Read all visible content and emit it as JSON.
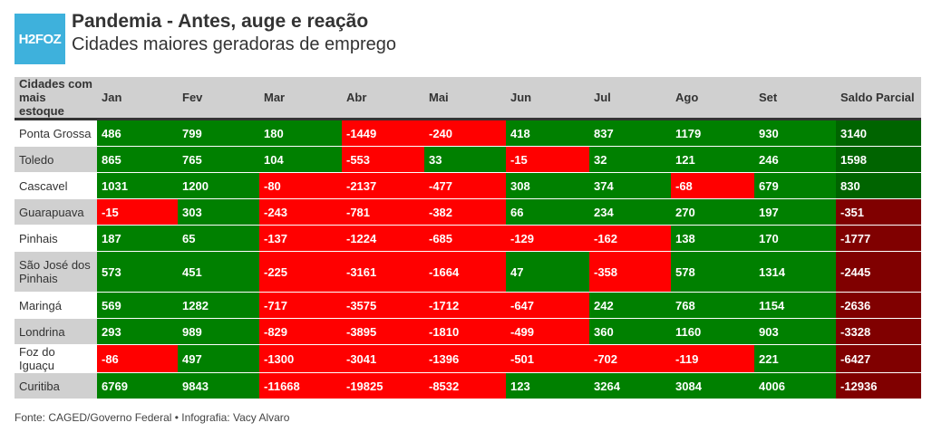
{
  "header": {
    "logo": "H2FOZ",
    "title": "Pandemia - Antes, auge e reação",
    "subtitle": "Cidades maiores geradoras de emprego"
  },
  "colors": {
    "positive": "#008000",
    "negative": "#ff0000",
    "total_positive": "#006400",
    "total_negative": "#800000",
    "header_bg": "#d0d0d0",
    "logo_bg": "#3eb1dc"
  },
  "chart_data": {
    "type": "table",
    "columns": [
      "Cidades com mais estoque",
      "Jan",
      "Fev",
      "Mar",
      "Abr",
      "Mai",
      "Jun",
      "Jul",
      "Ago",
      "Set",
      "Saldo Parcial"
    ],
    "rows": [
      {
        "city": "Ponta Grossa",
        "values": [
          486,
          799,
          180,
          -1449,
          -240,
          418,
          837,
          1179,
          930,
          3140
        ]
      },
      {
        "city": "Toledo",
        "values": [
          865,
          765,
          104,
          -553,
          33,
          -15,
          32,
          121,
          246,
          1598
        ]
      },
      {
        "city": "Cascavel",
        "values": [
          1031,
          1200,
          -80,
          -2137,
          -477,
          308,
          374,
          -68,
          679,
          830
        ]
      },
      {
        "city": "Guarapuava",
        "values": [
          -15,
          303,
          -243,
          -781,
          -382,
          66,
          234,
          270,
          197,
          -351
        ]
      },
      {
        "city": "Pinhais",
        "values": [
          187,
          65,
          -137,
          -1224,
          -685,
          -129,
          -162,
          138,
          170,
          -1777
        ]
      },
      {
        "city": "São José dos Pinhais",
        "values": [
          573,
          451,
          -225,
          -3161,
          -1664,
          47,
          -358,
          578,
          1314,
          -2445
        ]
      },
      {
        "city": "Maringá",
        "values": [
          569,
          1282,
          -717,
          -3575,
          -1712,
          -647,
          242,
          768,
          1154,
          -2636
        ]
      },
      {
        "city": "Londrina",
        "values": [
          293,
          989,
          -829,
          -3895,
          -1810,
          -499,
          360,
          1160,
          903,
          -3328
        ]
      },
      {
        "city": "Foz do Iguaçu",
        "values": [
          -86,
          497,
          -1300,
          -3041,
          -1396,
          -501,
          -702,
          -119,
          221,
          -6427
        ]
      },
      {
        "city": "Curitiba",
        "values": [
          6769,
          9843,
          -11668,
          -19825,
          -8532,
          123,
          3264,
          3084,
          4006,
          -12936
        ]
      }
    ]
  },
  "footer": "Fonte: CAGED/Governo Federal • Infografia: Vacy Alvaro"
}
